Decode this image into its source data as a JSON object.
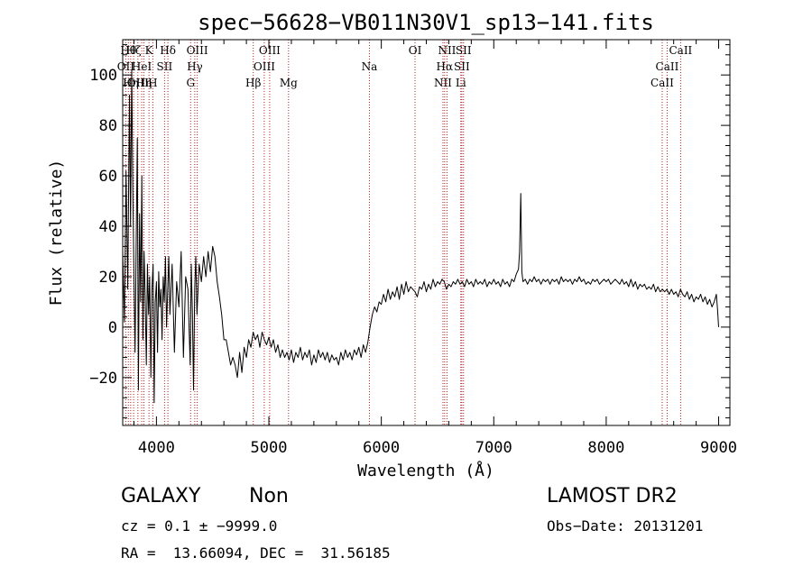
{
  "chart_data": {
    "type": "line",
    "title": "spec−56628−VB011N30V1_sp13−141.fits",
    "xlabel": "Wavelength (Å)",
    "ylabel": "Flux (relative)",
    "xlim": [
      3700,
      9100
    ],
    "ylim": [
      -39,
      114
    ],
    "x_ticks": [
      4000,
      5000,
      6000,
      7000,
      8000,
      9000
    ],
    "y_ticks": [
      -20,
      0,
      20,
      40,
      60,
      80,
      100
    ],
    "grid": false,
    "series_color": "#000000",
    "line_color": "#b22222",
    "series": [
      {
        "points": [
          [
            3700,
            30
          ],
          [
            3715,
            2
          ],
          [
            3730,
            62
          ],
          [
            3745,
            15
          ],
          [
            3760,
            92
          ],
          [
            3770,
            40
          ],
          [
            3780,
            102
          ],
          [
            3790,
            55
          ],
          [
            3800,
            20
          ],
          [
            3810,
            -10
          ],
          [
            3820,
            35
          ],
          [
            3830,
            75
          ],
          [
            3840,
            -25
          ],
          [
            3850,
            45
          ],
          [
            3860,
            10
          ],
          [
            3870,
            60
          ],
          [
            3880,
            -5
          ],
          [
            3890,
            30
          ],
          [
            3900,
            12
          ],
          [
            3910,
            -15
          ],
          [
            3920,
            25
          ],
          [
            3930,
            5
          ],
          [
            3940,
            20
          ],
          [
            3950,
            -20
          ],
          [
            3960,
            15
          ],
          [
            3970,
            25
          ],
          [
            3980,
            -30
          ],
          [
            3990,
            10
          ],
          [
            4000,
            18
          ],
          [
            4010,
            -10
          ],
          [
            4020,
            22
          ],
          [
            4030,
            8
          ],
          [
            4040,
            15
          ],
          [
            4050,
            -5
          ],
          [
            4060,
            20
          ],
          [
            4070,
            10
          ],
          [
            4080,
            28
          ],
          [
            4090,
            0
          ],
          [
            4100,
            15
          ],
          [
            4110,
            28
          ],
          [
            4120,
            5
          ],
          [
            4140,
            25
          ],
          [
            4160,
            -10
          ],
          [
            4180,
            18
          ],
          [
            4200,
            8
          ],
          [
            4220,
            30
          ],
          [
            4240,
            -12
          ],
          [
            4260,
            20
          ],
          [
            4280,
            15
          ],
          [
            4300,
            -15
          ],
          [
            4310,
            25
          ],
          [
            4320,
            5
          ],
          [
            4330,
            -25
          ],
          [
            4340,
            15
          ],
          [
            4350,
            28
          ],
          [
            4360,
            5
          ],
          [
            4380,
            25
          ],
          [
            4400,
            18
          ],
          [
            4420,
            28
          ],
          [
            4440,
            20
          ],
          [
            4460,
            30
          ],
          [
            4480,
            22
          ],
          [
            4500,
            32
          ],
          [
            4520,
            28
          ],
          [
            4540,
            18
          ],
          [
            4560,
            12
          ],
          [
            4580,
            5
          ],
          [
            4600,
            -5
          ],
          [
            4620,
            -5
          ],
          [
            4640,
            -10
          ],
          [
            4660,
            -15
          ],
          [
            4680,
            -12
          ],
          [
            4700,
            -15
          ],
          [
            4720,
            -20
          ],
          [
            4740,
            -10
          ],
          [
            4760,
            -18
          ],
          [
            4780,
            -8
          ],
          [
            4800,
            -12
          ],
          [
            4820,
            -5
          ],
          [
            4840,
            -8
          ],
          [
            4860,
            -2
          ],
          [
            4880,
            -5
          ],
          [
            4900,
            -3
          ],
          [
            4920,
            -8
          ],
          [
            4940,
            -2
          ],
          [
            4960,
            -5
          ],
          [
            4980,
            -7
          ],
          [
            5000,
            -4
          ],
          [
            5020,
            -8
          ],
          [
            5040,
            -5
          ],
          [
            5060,
            -10
          ],
          [
            5080,
            -7
          ],
          [
            5100,
            -12
          ],
          [
            5120,
            -9
          ],
          [
            5140,
            -12
          ],
          [
            5160,
            -10
          ],
          [
            5180,
            -13
          ],
          [
            5200,
            -9
          ],
          [
            5220,
            -14
          ],
          [
            5240,
            -10
          ],
          [
            5260,
            -12
          ],
          [
            5280,
            -8
          ],
          [
            5300,
            -13
          ],
          [
            5320,
            -10
          ],
          [
            5340,
            -12
          ],
          [
            5360,
            -9
          ],
          [
            5380,
            -15
          ],
          [
            5400,
            -11
          ],
          [
            5420,
            -14
          ],
          [
            5440,
            -9
          ],
          [
            5460,
            -12
          ],
          [
            5480,
            -10
          ],
          [
            5500,
            -13
          ],
          [
            5520,
            -10
          ],
          [
            5540,
            -14
          ],
          [
            5560,
            -11
          ],
          [
            5580,
            -13
          ],
          [
            5600,
            -12
          ],
          [
            5620,
            -15
          ],
          [
            5640,
            -10
          ],
          [
            5660,
            -13
          ],
          [
            5680,
            -9
          ],
          [
            5700,
            -12
          ],
          [
            5720,
            -10
          ],
          [
            5740,
            -13
          ],
          [
            5760,
            -9
          ],
          [
            5780,
            -11
          ],
          [
            5800,
            -8
          ],
          [
            5820,
            -12
          ],
          [
            5840,
            -7
          ],
          [
            5860,
            -10
          ],
          [
            5880,
            -6
          ],
          [
            5900,
            0
          ],
          [
            5920,
            5
          ],
          [
            5940,
            8
          ],
          [
            5960,
            6
          ],
          [
            5980,
            10
          ],
          [
            6000,
            9
          ],
          [
            6020,
            13
          ],
          [
            6040,
            10
          ],
          [
            6060,
            15
          ],
          [
            6080,
            11
          ],
          [
            6100,
            14
          ],
          [
            6120,
            12
          ],
          [
            6140,
            16
          ],
          [
            6160,
            11
          ],
          [
            6180,
            17
          ],
          [
            6200,
            13
          ],
          [
            6220,
            18
          ],
          [
            6240,
            14
          ],
          [
            6260,
            16
          ],
          [
            6280,
            15
          ],
          [
            6300,
            14
          ],
          [
            6320,
            12
          ],
          [
            6340,
            16
          ],
          [
            6360,
            15
          ],
          [
            6380,
            18
          ],
          [
            6400,
            14
          ],
          [
            6420,
            17
          ],
          [
            6440,
            15
          ],
          [
            6460,
            19
          ],
          [
            6480,
            16
          ],
          [
            6500,
            18
          ],
          [
            6520,
            17
          ],
          [
            6540,
            19
          ],
          [
            6560,
            18
          ],
          [
            6580,
            15
          ],
          [
            6600,
            17
          ],
          [
            6620,
            16
          ],
          [
            6640,
            18
          ],
          [
            6660,
            17
          ],
          [
            6680,
            19
          ],
          [
            6700,
            17
          ],
          [
            6720,
            18
          ],
          [
            6740,
            16
          ],
          [
            6760,
            19
          ],
          [
            6780,
            17
          ],
          [
            6800,
            18
          ],
          [
            6820,
            16
          ],
          [
            6840,
            19
          ],
          [
            6860,
            17
          ],
          [
            6880,
            18
          ],
          [
            6900,
            17
          ],
          [
            6920,
            19
          ],
          [
            6940,
            16
          ],
          [
            6960,
            18
          ],
          [
            6980,
            17
          ],
          [
            7000,
            19
          ],
          [
            7020,
            17
          ],
          [
            7040,
            18
          ],
          [
            7060,
            16
          ],
          [
            7080,
            19
          ],
          [
            7100,
            17
          ],
          [
            7120,
            18
          ],
          [
            7140,
            16
          ],
          [
            7160,
            19
          ],
          [
            7180,
            18
          ],
          [
            7200,
            21
          ],
          [
            7220,
            23
          ],
          [
            7230,
            30
          ],
          [
            7240,
            53
          ],
          [
            7250,
            22
          ],
          [
            7260,
            18
          ],
          [
            7280,
            19
          ],
          [
            7300,
            17
          ],
          [
            7320,
            19
          ],
          [
            7340,
            18
          ],
          [
            7360,
            20
          ],
          [
            7380,
            18
          ],
          [
            7400,
            19
          ],
          [
            7420,
            17
          ],
          [
            7440,
            19
          ],
          [
            7460,
            18
          ],
          [
            7480,
            19
          ],
          [
            7500,
            17
          ],
          [
            7520,
            19
          ],
          [
            7540,
            18
          ],
          [
            7560,
            19
          ],
          [
            7580,
            17
          ],
          [
            7600,
            20
          ],
          [
            7620,
            18
          ],
          [
            7640,
            19
          ],
          [
            7660,
            18
          ],
          [
            7680,
            19
          ],
          [
            7700,
            17
          ],
          [
            7720,
            19
          ],
          [
            7740,
            18
          ],
          [
            7760,
            20
          ],
          [
            7780,
            18
          ],
          [
            7800,
            19
          ],
          [
            7820,
            17
          ],
          [
            7840,
            18
          ],
          [
            7860,
            17
          ],
          [
            7880,
            19
          ],
          [
            7900,
            18
          ],
          [
            7920,
            19
          ],
          [
            7940,
            17
          ],
          [
            7960,
            18
          ],
          [
            7980,
            19
          ],
          [
            8000,
            18
          ],
          [
            8020,
            19
          ],
          [
            8040,
            17
          ],
          [
            8060,
            18
          ],
          [
            8080,
            19
          ],
          [
            8100,
            18
          ],
          [
            8120,
            17
          ],
          [
            8140,
            19
          ],
          [
            8160,
            17
          ],
          [
            8180,
            18
          ],
          [
            8200,
            16
          ],
          [
            8220,
            19
          ],
          [
            8240,
            16
          ],
          [
            8260,
            18
          ],
          [
            8280,
            15
          ],
          [
            8300,
            17
          ],
          [
            8320,
            16
          ],
          [
            8340,
            17
          ],
          [
            8360,
            15
          ],
          [
            8380,
            16
          ],
          [
            8400,
            15
          ],
          [
            8420,
            17
          ],
          [
            8440,
            14
          ],
          [
            8460,
            16
          ],
          [
            8480,
            14
          ],
          [
            8500,
            15
          ],
          [
            8520,
            14
          ],
          [
            8540,
            15
          ],
          [
            8560,
            13
          ],
          [
            8580,
            15
          ],
          [
            8600,
            13
          ],
          [
            8620,
            14
          ],
          [
            8640,
            12
          ],
          [
            8660,
            15
          ],
          [
            8680,
            13
          ],
          [
            8700,
            12
          ],
          [
            8720,
            14
          ],
          [
            8740,
            11
          ],
          [
            8760,
            13
          ],
          [
            8780,
            10
          ],
          [
            8800,
            12
          ],
          [
            8820,
            11
          ],
          [
            8840,
            13
          ],
          [
            8860,
            10
          ],
          [
            8880,
            12
          ],
          [
            8900,
            9
          ],
          [
            8920,
            11
          ],
          [
            8940,
            8
          ],
          [
            8960,
            10
          ],
          [
            8980,
            13
          ],
          [
            8990,
            7
          ],
          [
            9000,
            0
          ]
        ]
      }
    ],
    "line_labels": [
      {
        "wl": 3727,
        "label": "OII",
        "row": 1
      },
      {
        "wl": 3750,
        "label": "Hθ",
        "row": 0
      },
      {
        "wl": 3771,
        "label": "Hη",
        "row": 2
      },
      {
        "wl": 3797,
        "label": "Hζ",
        "row": 0
      },
      {
        "wl": 3835,
        "label": "OIII",
        "row": 2
      },
      {
        "wl": 3869,
        "label": "HeI",
        "row": 1
      },
      {
        "wl": 3889,
        "label": "Hη",
        "row": 2
      },
      {
        "wl": 3934,
        "label": "K",
        "row": 0
      },
      {
        "wl": 3968,
        "label": "H",
        "row": 2
      },
      {
        "wl": 4072,
        "label": "SII",
        "row": 1
      },
      {
        "wl": 4102,
        "label": "Hδ",
        "row": 0
      },
      {
        "wl": 4304,
        "label": "G",
        "row": 2
      },
      {
        "wl": 4341,
        "label": "Hγ",
        "row": 1
      },
      {
        "wl": 4363,
        "label": "OIII",
        "row": 0
      },
      {
        "wl": 4861,
        "label": "Hβ",
        "row": 2
      },
      {
        "wl": 4959,
        "label": "OIII",
        "row": 1
      },
      {
        "wl": 5007,
        "label": "OIII",
        "row": 0
      },
      {
        "wl": 5175,
        "label": "Mg",
        "row": 2
      },
      {
        "wl": 5894,
        "label": "Na",
        "row": 1
      },
      {
        "wl": 6300,
        "label": "OI",
        "row": 0
      },
      {
        "wl": 6548,
        "label": "NII",
        "row": 2
      },
      {
        "wl": 6563,
        "label": "Hα",
        "row": 1
      },
      {
        "wl": 6584,
        "label": "NII",
        "row": 0
      },
      {
        "wl": 6707,
        "label": "Li",
        "row": 2
      },
      {
        "wl": 6716,
        "label": "SII",
        "row": 1
      },
      {
        "wl": 6731,
        "label": "SII",
        "row": 0
      },
      {
        "wl": 8498,
        "label": "CaII",
        "row": 2
      },
      {
        "wl": 8542,
        "label": "CaII",
        "row": 1
      },
      {
        "wl": 8662,
        "label": "CaII",
        "row": 0
      }
    ]
  },
  "info": {
    "class": "GALAXY",
    "subclass": "Non",
    "survey": "LAMOST DR2",
    "cz": "cz = 0.1 ± −9999.0",
    "obs_date": "Obs−Date: 20131201",
    "radec": "RA =  13.66094, DEC =  31.56185"
  }
}
